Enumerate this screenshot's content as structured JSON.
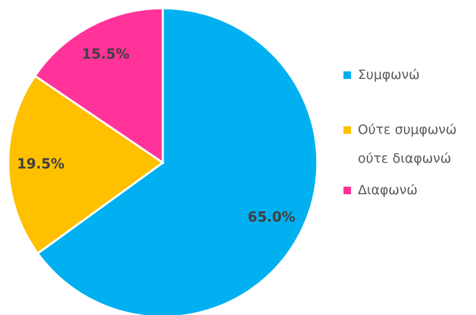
{
  "chart_data": {
    "type": "pie",
    "categories": [
      "Συμφωνώ",
      "Ούτε συμφωνώ ούτε διαφωνώ",
      "Διαφωνώ"
    ],
    "values": [
      65.0,
      19.5,
      15.5
    ],
    "value_labels": [
      "65.0%",
      "19.5%",
      "15.5%"
    ],
    "colors": [
      "#00b0f0",
      "#ffc000",
      "#ff3399"
    ],
    "legend": "right"
  }
}
